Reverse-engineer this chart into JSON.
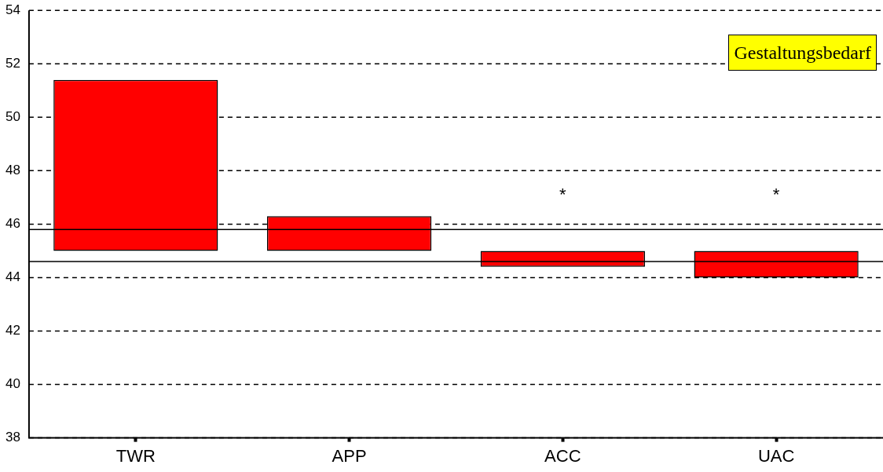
{
  "chart_data": {
    "type": "bar",
    "categories": [
      "TWR",
      "APP",
      "ACC",
      "UAC"
    ],
    "base": [
      45,
      45,
      45,
      45
    ],
    "values": [
      6.4,
      1.3,
      -0.6,
      -1.0
    ],
    "value_labels": [
      null,
      null,
      "*",
      "*"
    ],
    "color": "#ff0000",
    "ylim": [
      38,
      54
    ],
    "yticks": [
      38,
      40,
      42,
      44,
      46,
      48,
      50,
      52,
      54
    ],
    "grid": "y",
    "line_style": "dashed",
    "ref_lines": [
      {
        "axis": "y",
        "value": 45.8,
        "color": "#000000",
        "line_style": "solid"
      },
      {
        "axis": "y",
        "value": 44.6,
        "color": "#000000",
        "line_style": "solid"
      }
    ],
    "annotations": [
      "Gestaltungsbedarf"
    ]
  }
}
